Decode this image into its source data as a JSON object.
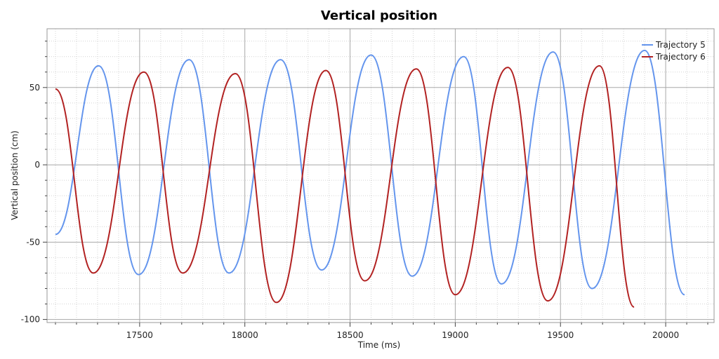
{
  "chart_data": {
    "type": "line",
    "title": "Vertical position",
    "xlabel": "Time (ms)",
    "ylabel": "Vertical position (cm)",
    "xlim": [
      17060,
      20230
    ],
    "ylim": [
      -102,
      88
    ],
    "xticks": [
      17500,
      18000,
      18500,
      19000,
      19500,
      20000
    ],
    "yticks": [
      -100,
      -50,
      0,
      50
    ],
    "grid": true,
    "legend_position": "top-right",
    "series": [
      {
        "name": "Trajectory 5",
        "color": "#6495ED",
        "x": [
          17100,
          17305,
          17495,
          17735,
          17925,
          18170,
          18365,
          18600,
          18795,
          19040,
          19220,
          19465,
          19650,
          19900,
          20090
        ],
        "y": [
          -45,
          64,
          -71,
          68,
          -70,
          68,
          -68,
          71,
          -72,
          70,
          -77,
          73,
          -80,
          74,
          -84
        ]
      },
      {
        "name": "Trajectory 6",
        "color": "#B22222",
        "x": [
          17100,
          17280,
          17520,
          17705,
          17955,
          18150,
          18385,
          18570,
          18815,
          19000,
          19250,
          19440,
          19685,
          19850
        ],
        "y": [
          49,
          -70,
          60,
          -70,
          59,
          -89,
          61,
          -75,
          62,
          -84,
          63,
          -88,
          64,
          -92
        ]
      }
    ]
  }
}
